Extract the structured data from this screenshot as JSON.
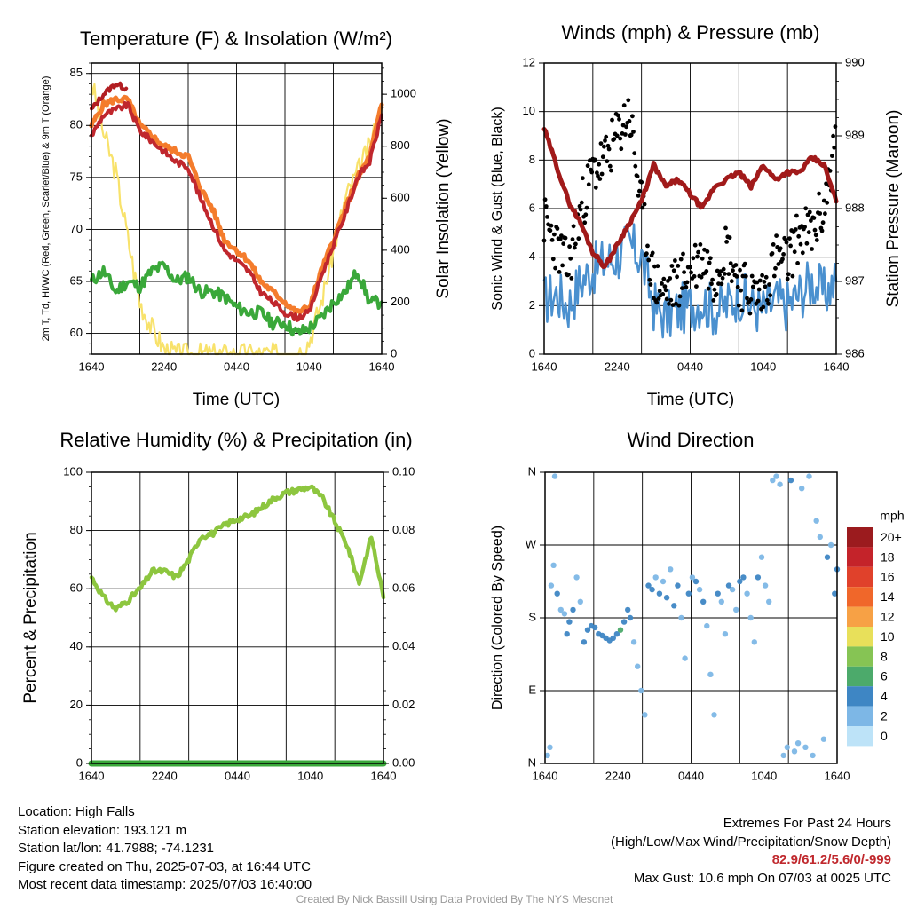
{
  "figure": {
    "credit": "Created By Nick Bassill Using Data Provided By The NYS Mesonet"
  },
  "info": {
    "location": "Location: High Falls",
    "elevation": "Station elevation: 193.121 m",
    "latlon": "Station lat/lon: 41.7988; -74.1231",
    "created": "Figure created on Thu, 2025-07-03, at 16:44 UTC",
    "recent": "Most recent data timestamp: 2025/07/03 16:40:00"
  },
  "extremes": {
    "title": "Extremes For Past 24 Hours",
    "subtitle": "(High/Low/Max Wind/Precipitation/Snow Depth)",
    "values": "82.9/61.2/5.6/0/-999",
    "max_gust": "Max Gust: 10.6 mph On 07/03 at 0025 UTC"
  },
  "colors": {
    "temp": "#c0272d",
    "heat_index": "#b21e22",
    "nine_m_temp": "#f47c2c",
    "dewpoint": "#3aa83a",
    "insolation": "#f8e26b",
    "wind": "#4a90cf",
    "gust": "#000000",
    "pressure": "#a11a1a",
    "rh": "#8dc63f",
    "precip": "#3aa83a"
  },
  "chart_data": [
    {
      "type": "line",
      "title": "Temperature (F) & Insolation (W/m²)",
      "xlabel": "Time (UTC)",
      "ylabel": "2m T, Td, HI/WC (Red, Green, Scarlet/Blue) & 9m T (Orange)",
      "y2label": "Solar Insolation (Yellow)",
      "x_ticks": [
        "1640",
        "2240",
        "0440",
        "1040",
        "1640"
      ],
      "ylim": [
        58,
        86
      ],
      "y_ticks": [
        60,
        65,
        70,
        75,
        80,
        85
      ],
      "y2lim": [
        0,
        1120
      ],
      "y2_ticks": [
        0,
        200,
        400,
        600,
        800,
        1000
      ],
      "x": [
        0,
        1,
        2,
        3,
        4,
        5,
        6,
        7,
        8,
        9,
        10,
        11,
        12,
        13,
        14,
        15,
        16,
        17,
        18,
        19,
        20,
        21,
        22,
        23,
        24
      ],
      "series": [
        {
          "key": "t9m",
          "values": [
            80,
            82,
            82.5,
            82.5,
            80,
            79,
            78,
            77.5,
            77,
            74,
            72,
            69,
            68,
            67,
            65,
            64,
            63,
            62,
            62.5,
            66,
            69,
            72,
            75,
            77,
            82
          ]
        },
        {
          "key": "t2m",
          "values": [
            79,
            81,
            81.5,
            82,
            79.5,
            78.5,
            77.5,
            76.5,
            76,
            73,
            70.5,
            68,
            67,
            66,
            64,
            63,
            62,
            61.5,
            62,
            65.5,
            68.5,
            71.5,
            75,
            76.5,
            81
          ]
        },
        {
          "key": "hi",
          "values": [
            81.5,
            83,
            84,
            83.5,
            null,
            null,
            null,
            null,
            null,
            null,
            null,
            null,
            null,
            null,
            null,
            null,
            null,
            null,
            null,
            null,
            null,
            null,
            null,
            null,
            82
          ]
        },
        {
          "key": "td",
          "values": [
            65,
            66,
            64,
            65,
            64.5,
            66,
            66.5,
            65,
            65.5,
            64,
            64,
            63.5,
            62.5,
            62,
            62,
            61,
            61,
            60,
            60.5,
            61.5,
            63,
            64,
            66,
            63,
            63
          ]
        },
        {
          "key": "sol",
          "values": [
            1050,
            850,
            700,
            450,
            200,
            100,
            20,
            0,
            0,
            0,
            0,
            0,
            0,
            0,
            0,
            0,
            0,
            0,
            50,
            200,
            400,
            600,
            700,
            800,
            950
          ]
        }
      ]
    },
    {
      "type": "line",
      "title": "Winds (mph) & Pressure (mb)",
      "xlabel": "Time (UTC)",
      "ylabel": "Sonic Wind & Gust (Blue, Black)",
      "y2label": "Station Pressure (Maroon)",
      "x_ticks": [
        "1640",
        "2240",
        "0440",
        "1040",
        "1640"
      ],
      "ylim": [
        0,
        12
      ],
      "y_ticks": [
        0,
        2,
        4,
        6,
        8,
        10,
        12
      ],
      "y2lim": [
        986,
        990
      ],
      "y2_ticks": [
        986,
        987,
        988,
        989,
        990
      ],
      "x": [
        0,
        1,
        2,
        3,
        4,
        5,
        6,
        7,
        8,
        9,
        10,
        11,
        12,
        13,
        14,
        15,
        16,
        17,
        18,
        19,
        20,
        21,
        22,
        23,
        24
      ],
      "series": [
        {
          "key": "wind",
          "values": [
            2.2,
            2.5,
            2,
            3,
            3.5,
            3.8,
            4,
            4.5,
            4,
            2,
            1.5,
            1.8,
            2,
            2.2,
            1.8,
            2,
            2.5,
            2,
            1.8,
            2.2,
            2,
            2.5,
            3,
            2.5,
            3
          ]
        },
        {
          "key": "gust",
          "values": [
            5.5,
            4.5,
            3.5,
            6,
            7.5,
            8,
            9,
            10,
            6,
            3,
            2.5,
            3,
            3.5,
            4,
            3.2,
            4.5,
            3,
            2.5,
            2.5,
            4,
            3.8,
            5,
            5,
            6,
            9
          ]
        },
        {
          "key": "pressure",
          "values": [
            989.1,
            988.6,
            988.1,
            987.8,
            987.4,
            987.2,
            987.5,
            987.8,
            988.1,
            988.6,
            988.3,
            988.4,
            988.2,
            988.0,
            988.3,
            988.4,
            988.5,
            988.3,
            988.6,
            988.4,
            988.5,
            988.5,
            988.7,
            988.6,
            988.1
          ]
        }
      ]
    },
    {
      "type": "line",
      "title": "Relative Humidity (%) & Precipitation (in)",
      "ylabel": "Percent & Precipitation",
      "x_ticks": [
        "1640",
        "2240",
        "0440",
        "1040",
        "1640"
      ],
      "ylim": [
        0,
        100
      ],
      "y_ticks": [
        0,
        20,
        40,
        60,
        80,
        100
      ],
      "y2lim": [
        0,
        0.1
      ],
      "y2_ticks": [
        "0.00",
        "0.02",
        "0.04",
        "0.06",
        "0.08",
        "0.10"
      ],
      "x": [
        0,
        1,
        2,
        3,
        4,
        5,
        6,
        7,
        8,
        9,
        10,
        11,
        12,
        13,
        14,
        15,
        16,
        17,
        18,
        19,
        20,
        21,
        22,
        23,
        24
      ],
      "series": [
        {
          "key": "rh",
          "values": [
            64,
            57,
            53,
            56,
            60,
            66,
            66,
            64,
            70,
            78,
            79,
            82,
            84,
            85,
            88,
            91,
            93,
            94,
            95,
            91,
            83,
            75,
            62,
            78,
            57
          ]
        },
        {
          "key": "precip",
          "values": [
            0,
            0,
            0,
            0,
            0,
            0,
            0,
            0,
            0,
            0,
            0,
            0,
            0,
            0,
            0,
            0,
            0,
            0,
            0,
            0,
            0,
            0,
            0,
            0,
            0
          ]
        }
      ]
    },
    {
      "type": "scatter",
      "title": "Wind Direction",
      "ylabel": "Direction (Colored By Speed)",
      "x_ticks": [
        "1640",
        "2240",
        "0440",
        "1040",
        "1640"
      ],
      "ylim": [
        0,
        360
      ],
      "y_ticks": [
        {
          "v": 0,
          "l": "N"
        },
        {
          "v": 90,
          "l": "E"
        },
        {
          "v": 180,
          "l": "S"
        },
        {
          "v": 270,
          "l": "W"
        },
        {
          "v": 360,
          "l": "N"
        }
      ],
      "legend": {
        "title": "mph",
        "labels": [
          "20+",
          "18",
          "16",
          "14",
          "12",
          "10",
          "8",
          "6",
          "4",
          "2",
          "0"
        ],
        "colors": [
          "#9b1b1e",
          "#c4232a",
          "#e0412b",
          "#f0672a",
          "#f7a145",
          "#e8e05a",
          "#86c454",
          "#4caa6b",
          "#3e86c4",
          "#7db7e6",
          "#bde3f8"
        ]
      },
      "points": [
        [
          0.2,
          10,
          1
        ],
        [
          0.4,
          20,
          2
        ],
        [
          0.8,
          355,
          1
        ],
        [
          0.5,
          220,
          2
        ],
        [
          0.7,
          245,
          2
        ],
        [
          1.0,
          210,
          3
        ],
        [
          1.3,
          190,
          2
        ],
        [
          1.6,
          185,
          2
        ],
        [
          1.8,
          160,
          3
        ],
        [
          2.0,
          175,
          3
        ],
        [
          2.3,
          190,
          3
        ],
        [
          2.6,
          230,
          2
        ],
        [
          2.9,
          200,
          2
        ],
        [
          3.2,
          150,
          3
        ],
        [
          3.5,
          165,
          3
        ],
        [
          3.8,
          170,
          3
        ],
        [
          4.1,
          168,
          4
        ],
        [
          4.4,
          160,
          4
        ],
        [
          4.7,
          158,
          4
        ],
        [
          5.0,
          155,
          4
        ],
        [
          5.3,
          152,
          4
        ],
        [
          5.6,
          155,
          4
        ],
        [
          5.9,
          160,
          4
        ],
        [
          6.2,
          165,
          6
        ],
        [
          6.5,
          175,
          3
        ],
        [
          6.8,
          190,
          3
        ],
        [
          7.0,
          180,
          3
        ],
        [
          7.3,
          150,
          2
        ],
        [
          7.6,
          120,
          2
        ],
        [
          7.9,
          90,
          1
        ],
        [
          8.2,
          60,
          1
        ],
        [
          8.5,
          220,
          3
        ],
        [
          8.8,
          215,
          3
        ],
        [
          9.1,
          230,
          2
        ],
        [
          9.4,
          210,
          3
        ],
        [
          9.7,
          225,
          2
        ],
        [
          10.0,
          205,
          3
        ],
        [
          10.3,
          240,
          2
        ],
        [
          10.6,
          195,
          3
        ],
        [
          10.9,
          220,
          3
        ],
        [
          11.2,
          180,
          2
        ],
        [
          11.5,
          130,
          1
        ],
        [
          11.8,
          210,
          3
        ],
        [
          12.1,
          230,
          2
        ],
        [
          12.4,
          225,
          3
        ],
        [
          12.7,
          215,
          2
        ],
        [
          13.0,
          200,
          3
        ],
        [
          13.3,
          170,
          2
        ],
        [
          13.6,
          110,
          1
        ],
        [
          13.9,
          60,
          1
        ],
        [
          14.2,
          210,
          3
        ],
        [
          14.5,
          200,
          2
        ],
        [
          14.8,
          160,
          1
        ],
        [
          15.1,
          220,
          3
        ],
        [
          15.4,
          215,
          2
        ],
        [
          15.7,
          190,
          2
        ],
        [
          16.0,
          225,
          3
        ],
        [
          16.3,
          230,
          3
        ],
        [
          16.6,
          210,
          2
        ],
        [
          16.9,
          180,
          2
        ],
        [
          17.2,
          150,
          1
        ],
        [
          17.5,
          230,
          3
        ],
        [
          17.8,
          255,
          2
        ],
        [
          18.1,
          220,
          2
        ],
        [
          18.4,
          200,
          2
        ],
        [
          18.7,
          350,
          1
        ],
        [
          19.0,
          355,
          2
        ],
        [
          19.3,
          345,
          1
        ],
        [
          19.6,
          10,
          1
        ],
        [
          19.9,
          20,
          2
        ],
        [
          20.2,
          350,
          3
        ],
        [
          20.5,
          15,
          1
        ],
        [
          20.8,
          25,
          2
        ],
        [
          21.1,
          340,
          1
        ],
        [
          21.4,
          20,
          1
        ],
        [
          21.7,
          355,
          2
        ],
        [
          22.0,
          10,
          2
        ],
        [
          22.3,
          300,
          1
        ],
        [
          22.6,
          280,
          2
        ],
        [
          22.9,
          30,
          1
        ],
        [
          23.2,
          255,
          3
        ],
        [
          23.5,
          270,
          2
        ],
        [
          23.8,
          210,
          3
        ],
        [
          24.0,
          240,
          3
        ]
      ]
    }
  ]
}
